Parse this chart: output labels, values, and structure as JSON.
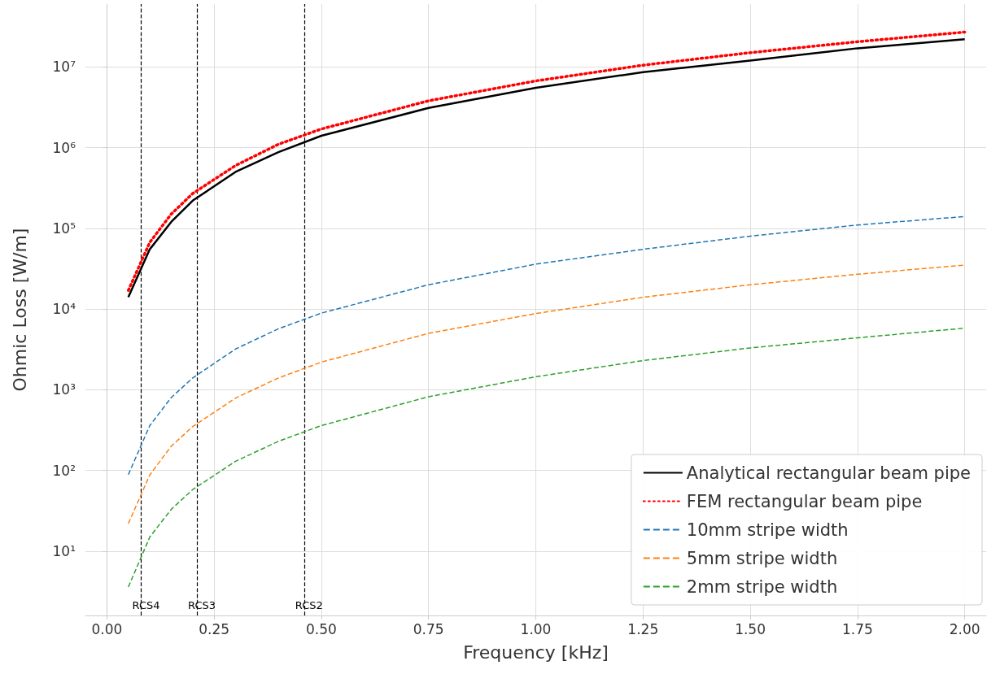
{
  "chart_data": {
    "type": "line",
    "xlabel": "Frequency [kHz]",
    "ylabel": "Ohmic Loss [W/m]",
    "x": [
      0.05,
      0.1,
      0.15,
      0.2,
      0.3,
      0.4,
      0.5,
      0.75,
      1.0,
      1.25,
      1.5,
      1.75,
      2.0
    ],
    "series": [
      {
        "name": "Analytical rectangular beam pipe",
        "color": "#000000",
        "line_style": "solid",
        "values": [
          14000,
          55000,
          120000,
          220000,
          500000,
          880000,
          1400000,
          3100000,
          5500000,
          8600000,
          12000000,
          17000000,
          22000000
        ]
      },
      {
        "name": "FEM rectangular beam pipe",
        "color": "#ff0000",
        "line_style": "dotted",
        "values": [
          17000,
          67000,
          150000,
          270000,
          600000,
          1100000,
          1700000,
          3800000,
          6700000,
          10500000,
          15000000,
          20500000,
          27000000
        ]
      },
      {
        "name": "10mm stripe width",
        "color": "#1f77b4",
        "line_style": "dashed",
        "values": [
          89,
          360,
          800,
          1400,
          3200,
          5700,
          8900,
          20000,
          36000,
          55000,
          80000,
          110000,
          140000
        ]
      },
      {
        "name": "5mm stripe width",
        "color": "#ff7f0e",
        "line_style": "dashed",
        "values": [
          22,
          88,
          200,
          350,
          790,
          1400,
          2200,
          5000,
          8800,
          14000,
          20000,
          27000,
          35000
        ]
      },
      {
        "name": "2mm stripe width",
        "color": "#2ca02c",
        "line_style": "dashed",
        "values": [
          3.6,
          15,
          33,
          58,
          130,
          230,
          360,
          820,
          1450,
          2300,
          3300,
          4400,
          5800
        ]
      }
    ],
    "log": "y",
    "xlim": [
      -0.05,
      2.05
    ],
    "ylim": [
      1.6,
      60000000
    ],
    "xticks": [
      {
        "value": 0,
        "label": "0.00"
      },
      {
        "value": 0.25,
        "label": "0.25"
      },
      {
        "value": 0.5,
        "label": "0.50"
      },
      {
        "value": 0.75,
        "label": "0.75"
      },
      {
        "value": 1,
        "label": "1.00"
      },
      {
        "value": 1.25,
        "label": "1.25"
      },
      {
        "value": 1.5,
        "label": "1.50"
      },
      {
        "value": 1.75,
        "label": "1.75"
      },
      {
        "value": 2,
        "label": "2.00"
      }
    ],
    "yticks": [
      {
        "value": 10,
        "label": "10¹"
      },
      {
        "value": 100,
        "label": "10²"
      },
      {
        "value": 1000,
        "label": "10³"
      },
      {
        "value": 10000,
        "label": "10⁴"
      },
      {
        "value": 100000,
        "label": "10⁵"
      },
      {
        "value": 1000000,
        "label": "10⁶"
      },
      {
        "value": 10000000,
        "label": "10⁷"
      }
    ],
    "ref_lines": [
      {
        "axis": "x",
        "value": 0.08,
        "label": "RCS4",
        "color": "#000000",
        "line_style": "dashed"
      },
      {
        "axis": "x",
        "value": 0.211,
        "label": "RCS3",
        "color": "#000000",
        "line_style": "dashed"
      },
      {
        "axis": "x",
        "value": 0.456,
        "label": "RCS2",
        "color": "#000000",
        "line_style": "dashed"
      }
    ],
    "grid": true,
    "legend": "bottom right"
  }
}
